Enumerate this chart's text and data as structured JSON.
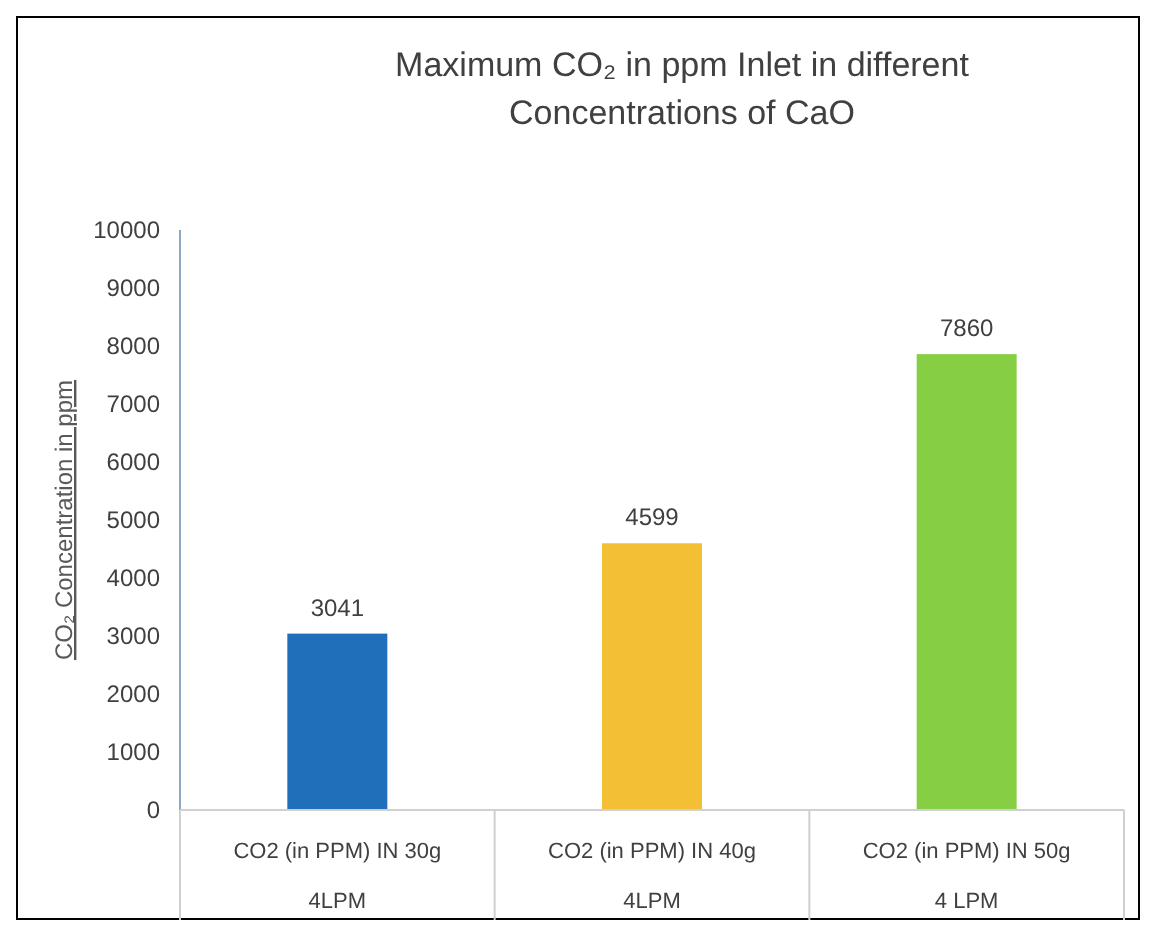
{
  "chart_data": {
    "type": "bar",
    "title": "Maximum CO₂ in ppm Inlet in different\nConcentrations of CaO",
    "ylabel": "CO₂ Concentration in ppm",
    "categories": [
      "CO2 (in PPM) IN 30g\n4LPM",
      "CO2 (in PPM) IN 40g\n4LPM",
      "CO2 (in PPM) IN 50g\n4 LPM"
    ],
    "values": [
      3041,
      4599,
      7860
    ],
    "colors": [
      "#1f6fba",
      "#f2bf35",
      "#86cf45"
    ],
    "ylim": [
      0,
      10000
    ],
    "yticks": [
      0,
      1000,
      2000,
      3000,
      4000,
      5000,
      6000,
      7000,
      8000,
      9000,
      10000
    ],
    "data_labels": true,
    "grid": false
  }
}
